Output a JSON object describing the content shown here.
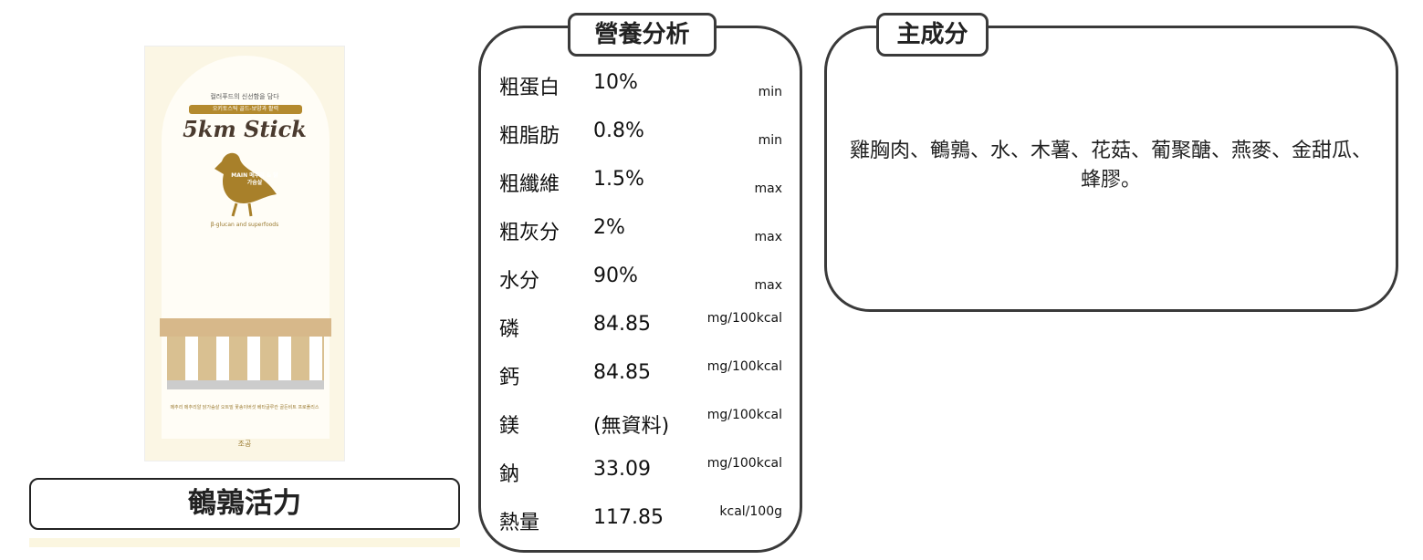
{
  "product": {
    "name": "鵪鶉活力",
    "image": {
      "tagline": "컬러푸드의 신선함을 담다",
      "subtitle": "오키토스틱 골드-보양과 활력",
      "brand": "5km Stick",
      "main_label": "MAIN 메추리 & 닭가슴살",
      "superfoods": "β-glucan and superfoods",
      "ingredients_strip": "메추리 메추리알 닭가슴살 오트밀 꽃송이버섯 베타글루칸 골든비트 프로폴리스",
      "maker": "조공"
    }
  },
  "nutrition": {
    "title": "營養分析",
    "rows": [
      {
        "label": "粗蛋白",
        "value": "10%",
        "unit": "min"
      },
      {
        "label": "粗脂肪",
        "value": "0.8%",
        "unit": "min"
      },
      {
        "label": "粗纖維",
        "value": "1.5%",
        "unit": "max"
      },
      {
        "label": "粗灰分",
        "value": "2%",
        "unit": "max"
      },
      {
        "label": "水分",
        "value": "90%",
        "unit": "max"
      },
      {
        "label": "磷",
        "value": "84.85",
        "unit": "mg/100kcal"
      },
      {
        "label": "鈣",
        "value": "84.85",
        "unit": "mg/100kcal"
      },
      {
        "label": "鎂",
        "value": "(無資料)",
        "unit": "mg/100kcal"
      },
      {
        "label": "鈉",
        "value": "33.09",
        "unit": "mg/100kcal"
      },
      {
        "label": "熱量",
        "value": "117.85",
        "unit": "kcal/100g"
      }
    ]
  },
  "ingredients": {
    "title": "主成分",
    "text": "雞胸肉、鵪鶉、水、木薯、花菇、葡聚醣、燕麥、金甜瓜、蜂膠。"
  }
}
